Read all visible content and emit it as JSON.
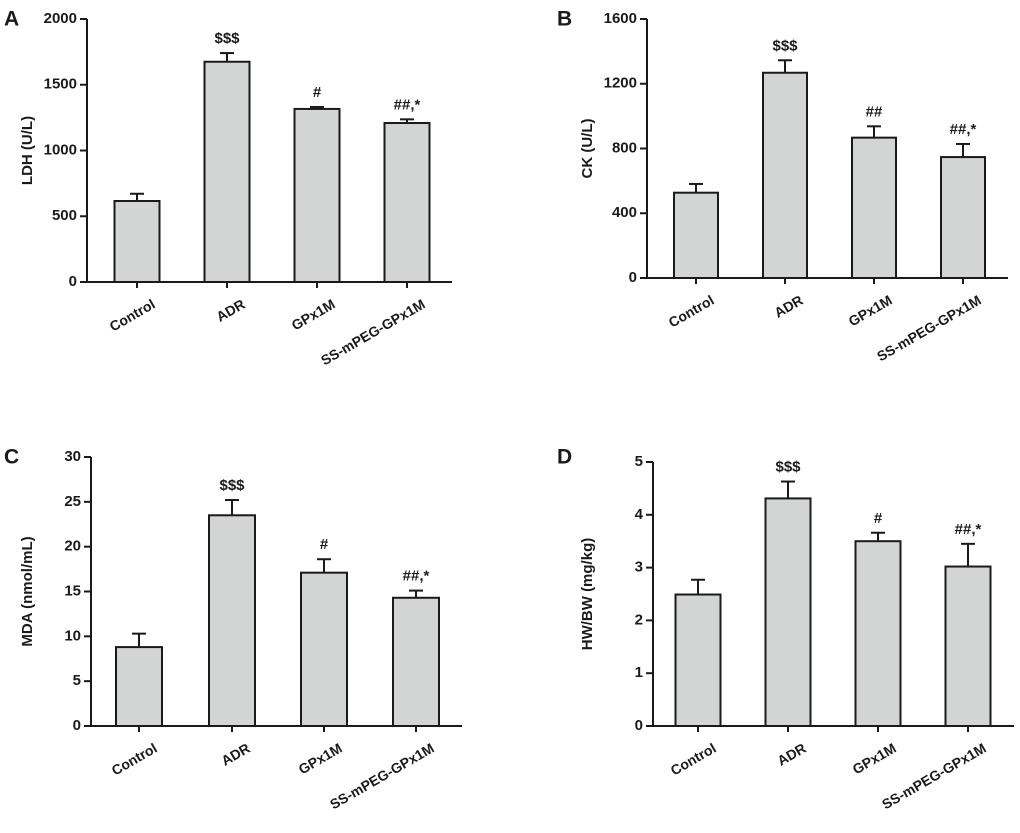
{
  "figure": {
    "colors": {
      "bar_fill": "#d3d4d4",
      "bar_stroke": "#1a1a1a",
      "axis": "#1a1a1a",
      "background": "#ffffff"
    }
  },
  "chart_data": [
    {
      "panel": "A",
      "type": "bar",
      "title": "",
      "xlabel": "",
      "ylabel": "LDH (U/L)",
      "ylim": [
        0,
        2000
      ],
      "yticks": [
        0,
        500,
        1000,
        1500,
        2000
      ],
      "categories": [
        "Control",
        "ADR",
        "GPx1M",
        "SS-mPEG-GPx1M"
      ],
      "values": [
        616,
        1675,
        1316,
        1209
      ],
      "errors": [
        55,
        66,
        15,
        28
      ],
      "annotations": [
        "",
        "$$$",
        "#",
        "##,*"
      ],
      "grid": false
    },
    {
      "panel": "B",
      "type": "bar",
      "title": "",
      "xlabel": "",
      "ylabel": "CK (U/L)",
      "ylim": [
        0,
        1600
      ],
      "yticks": [
        0,
        400,
        800,
        1200,
        1600
      ],
      "categories": [
        "Control",
        "ADR",
        "GPx1M",
        "SS-mPEG-GPx1M"
      ],
      "values": [
        527,
        1268,
        867,
        747
      ],
      "errors": [
        54,
        77,
        70,
        81
      ],
      "annotations": [
        "",
        "$$$",
        "##",
        "##,*"
      ],
      "grid": false
    },
    {
      "panel": "C",
      "type": "bar",
      "title": "",
      "xlabel": "",
      "ylabel": "MDA (nmol/mL)",
      "ylim": [
        0,
        30
      ],
      "yticks": [
        0,
        5,
        10,
        15,
        20,
        25,
        30
      ],
      "categories": [
        "Control",
        "ADR",
        "GPx1M",
        "SS-mPEG-GPx1M"
      ],
      "values": [
        8.8,
        23.5,
        17.1,
        14.3
      ],
      "errors": [
        1.5,
        1.7,
        1.5,
        0.8
      ],
      "annotations": [
        "",
        "$$$",
        "#",
        "##,*"
      ],
      "grid": false
    },
    {
      "panel": "D",
      "type": "bar",
      "title": "",
      "xlabel": "",
      "ylabel": "HW/BW (mg/kg)",
      "ylim": [
        0,
        5
      ],
      "yticks": [
        0,
        1,
        2,
        3,
        4,
        5
      ],
      "categories": [
        "Control",
        "ADR",
        "GPx1M",
        "SS-mPEG-GPx1M"
      ],
      "values": [
        2.49,
        4.31,
        3.5,
        3.02
      ],
      "errors": [
        0.28,
        0.32,
        0.16,
        0.43
      ],
      "annotations": [
        "",
        "$$$",
        "#",
        "##,*"
      ],
      "grid": false
    }
  ]
}
